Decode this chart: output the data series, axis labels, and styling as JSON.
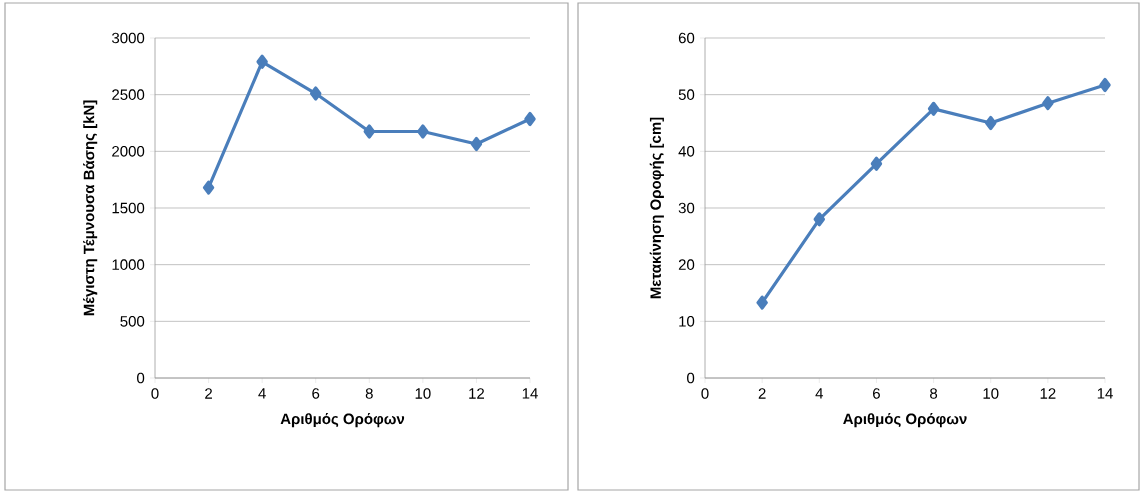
{
  "chart_data": [
    {
      "type": "line",
      "x": [
        2,
        4,
        6,
        8,
        10,
        12,
        14
      ],
      "values": [
        1680,
        2790,
        2510,
        2175,
        2175,
        2065,
        2285
      ],
      "color": "#4a7ebb",
      "xlabel": "Αριθμός Ορόφων",
      "ylabel": "Μέγιστη Τέμνουσα Βάσης [kN]",
      "xlim": [
        0,
        14
      ],
      "xticks": [
        0,
        2,
        4,
        6,
        8,
        10,
        12,
        14
      ],
      "ylim": [
        0,
        3000
      ],
      "yticks": [
        0,
        500,
        1000,
        1500,
        2000,
        2500,
        3000
      ],
      "grid": "y",
      "marker": "diamond",
      "line_style": "solid"
    },
    {
      "type": "line",
      "x": [
        2,
        4,
        6,
        8,
        10,
        12,
        14
      ],
      "values": [
        13.3,
        28,
        37.8,
        47.5,
        45,
        48.5,
        51.7
      ],
      "color": "#4a7ebb",
      "xlabel": "Αριθμός Ορόφων",
      "ylabel": "Μετακίνηση Οροφής [cm]",
      "xlim": [
        0,
        14
      ],
      "xticks": [
        0,
        2,
        4,
        6,
        8,
        10,
        12,
        14
      ],
      "ylim": [
        0,
        60
      ],
      "yticks": [
        0,
        10,
        20,
        30,
        40,
        50,
        60
      ],
      "grid": "y",
      "marker": "diamond",
      "line_style": "solid"
    }
  ]
}
